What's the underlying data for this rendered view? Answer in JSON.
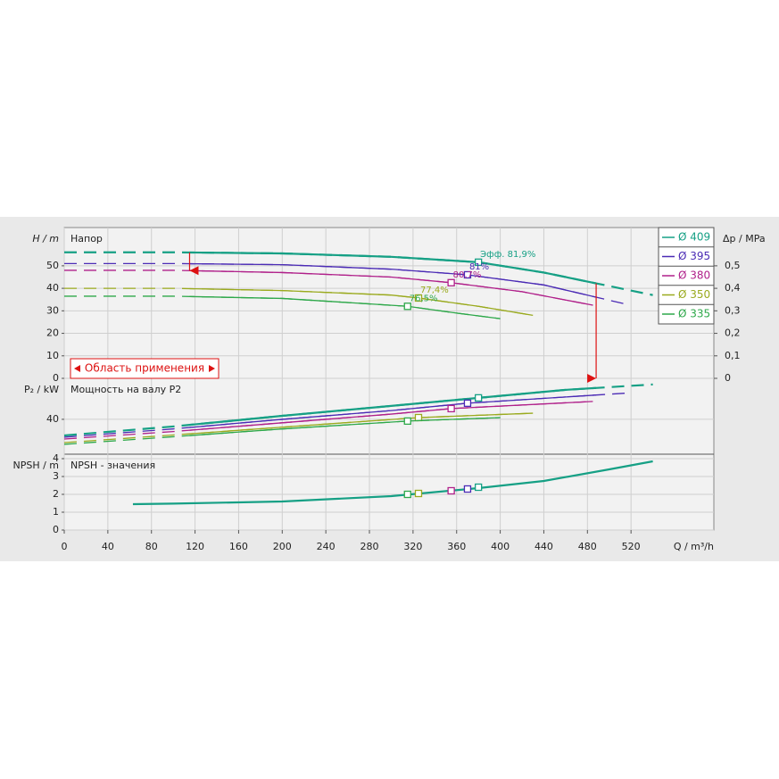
{
  "chart_data": [
    {
      "type": "line",
      "title": "Напор",
      "ylabel": "H / m",
      "y2label": "Δp / MPa",
      "xlim": [
        0,
        596
      ],
      "ylim": [
        0,
        67
      ],
      "yticks": [
        0,
        10,
        20,
        30,
        40,
        50
      ],
      "y2lim": [
        0,
        0.67
      ],
      "y2ticks": [
        0,
        {
          "value": 0.1,
          "label": "0,1"
        },
        {
          "value": 0.2,
          "label": "0,2"
        },
        {
          "value": 0.3,
          "label": "0,3"
        },
        {
          "value": 0.4,
          "label": "0,4"
        },
        {
          "value": 0.5,
          "label": "0,5"
        }
      ],
      "application_label": "Область применения",
      "application_range": [
        115,
        488
      ],
      "grid": true,
      "legend": "upper right",
      "series": [
        {
          "name": "Ø 409",
          "color": "#16a085",
          "x": [
            0,
            100,
            200,
            300,
            380,
            440,
            480,
            540
          ],
          "values": [
            56,
            56,
            55.5,
            54,
            51.6,
            47,
            43,
            37
          ],
          "point": {
            "x": 380,
            "value": 51.6,
            "label": "Эфф.  81,9%"
          }
        },
        {
          "name": "Ø 395",
          "color": "#4b2bb5",
          "x": [
            0,
            100,
            200,
            300,
            370,
            440,
            515
          ],
          "values": [
            51,
            51,
            50.5,
            48.5,
            46,
            41.5,
            33
          ],
          "point": {
            "x": 370,
            "value": 46,
            "label": "81%"
          }
        },
        {
          "name": "Ø 380",
          "color": "#b0208a",
          "x": [
            0,
            100,
            200,
            300,
            355,
            420,
            485
          ],
          "values": [
            48,
            48,
            47,
            45,
            42.5,
            38.5,
            32.5
          ],
          "point": {
            "x": 355,
            "value": 42.5,
            "label": "80,7%"
          }
        },
        {
          "name": "Ø 350",
          "color": "#9aaa1e",
          "x": [
            0,
            100,
            200,
            300,
            325,
            380,
            430
          ],
          "values": [
            40,
            40,
            39,
            37,
            35.7,
            32,
            28
          ],
          "point": {
            "x": 325,
            "value": 35.7,
            "label": "77,4%"
          }
        },
        {
          "name": "Ø 335",
          "color": "#2ea84a",
          "x": [
            0,
            100,
            200,
            315,
            360,
            400
          ],
          "values": [
            36.5,
            36.5,
            35.5,
            32,
            29,
            26.5
          ],
          "point": {
            "x": 315,
            "value": 32,
            "label": "76,5%"
          }
        }
      ]
    },
    {
      "type": "line",
      "title": "Мощность на валу P2",
      "ylabel": "P₂ / kW",
      "xlim": [
        0,
        596
      ],
      "ylim": [
        0,
        87
      ],
      "yticks": [
        40
      ],
      "grid": true,
      "series": [
        {
          "color": "#16a085",
          "x": [
            0,
            100,
            200,
            300,
            380,
            460,
            540
          ],
          "values": [
            21.5,
            31.8,
            44,
            55.4,
            64.6,
            73.8,
            80
          ],
          "point": {
            "x": 380,
            "value": 64.6
          }
        },
        {
          "color": "#4b2bb5",
          "x": [
            0,
            100,
            200,
            300,
            370,
            515
          ],
          "values": [
            19.5,
            29,
            40,
            50,
            58.5,
            70
          ],
          "point": {
            "x": 370,
            "value": 58.5
          }
        },
        {
          "color": "#b0208a",
          "x": [
            0,
            100,
            200,
            300,
            355,
            485
          ],
          "values": [
            17.4,
            26,
            36,
            46,
            52.3,
            60.5
          ],
          "point": {
            "x": 355,
            "value": 52.3
          }
        },
        {
          "color": "#9aaa1e",
          "x": [
            0,
            100,
            200,
            325,
            430
          ],
          "values": [
            13.3,
            22,
            31,
            42,
            47
          ],
          "point": {
            "x": 325,
            "value": 42
          }
        },
        {
          "color": "#2ea84a",
          "x": [
            0,
            100,
            200,
            315,
            400
          ],
          "values": [
            11.3,
            20,
            29,
            38,
            42
          ],
          "point": {
            "x": 315,
            "value": 38
          }
        }
      ]
    },
    {
      "type": "line",
      "title": "NPSH - значения",
      "ylabel": "NPSH / m",
      "xlabel": "Q / m³/h",
      "xlim": [
        0,
        596
      ],
      "ylim": [
        0,
        4.25
      ],
      "yticks": [
        0,
        1,
        2,
        3,
        4
      ],
      "grid": true,
      "xticks": [
        0,
        40,
        80,
        120,
        160,
        200,
        240,
        280,
        320,
        360,
        400,
        440,
        480,
        520
      ],
      "series": [
        {
          "color": "#16a085",
          "x": [
            63,
            100,
            200,
            300,
            380,
            440,
            500,
            540
          ],
          "values": [
            1.45,
            1.48,
            1.6,
            1.9,
            2.35,
            2.75,
            3.4,
            3.85
          ]
        }
      ],
      "points": [
        {
          "x": 315,
          "value": 2.0,
          "color": "#2ea84a"
        },
        {
          "x": 325,
          "value": 2.05,
          "color": "#9aaa1e"
        },
        {
          "x": 355,
          "value": 2.2,
          "color": "#b0208a"
        },
        {
          "x": 370,
          "value": 2.3,
          "color": "#4b2bb5"
        },
        {
          "x": 380,
          "value": 2.4,
          "color": "#16a085"
        }
      ]
    }
  ]
}
